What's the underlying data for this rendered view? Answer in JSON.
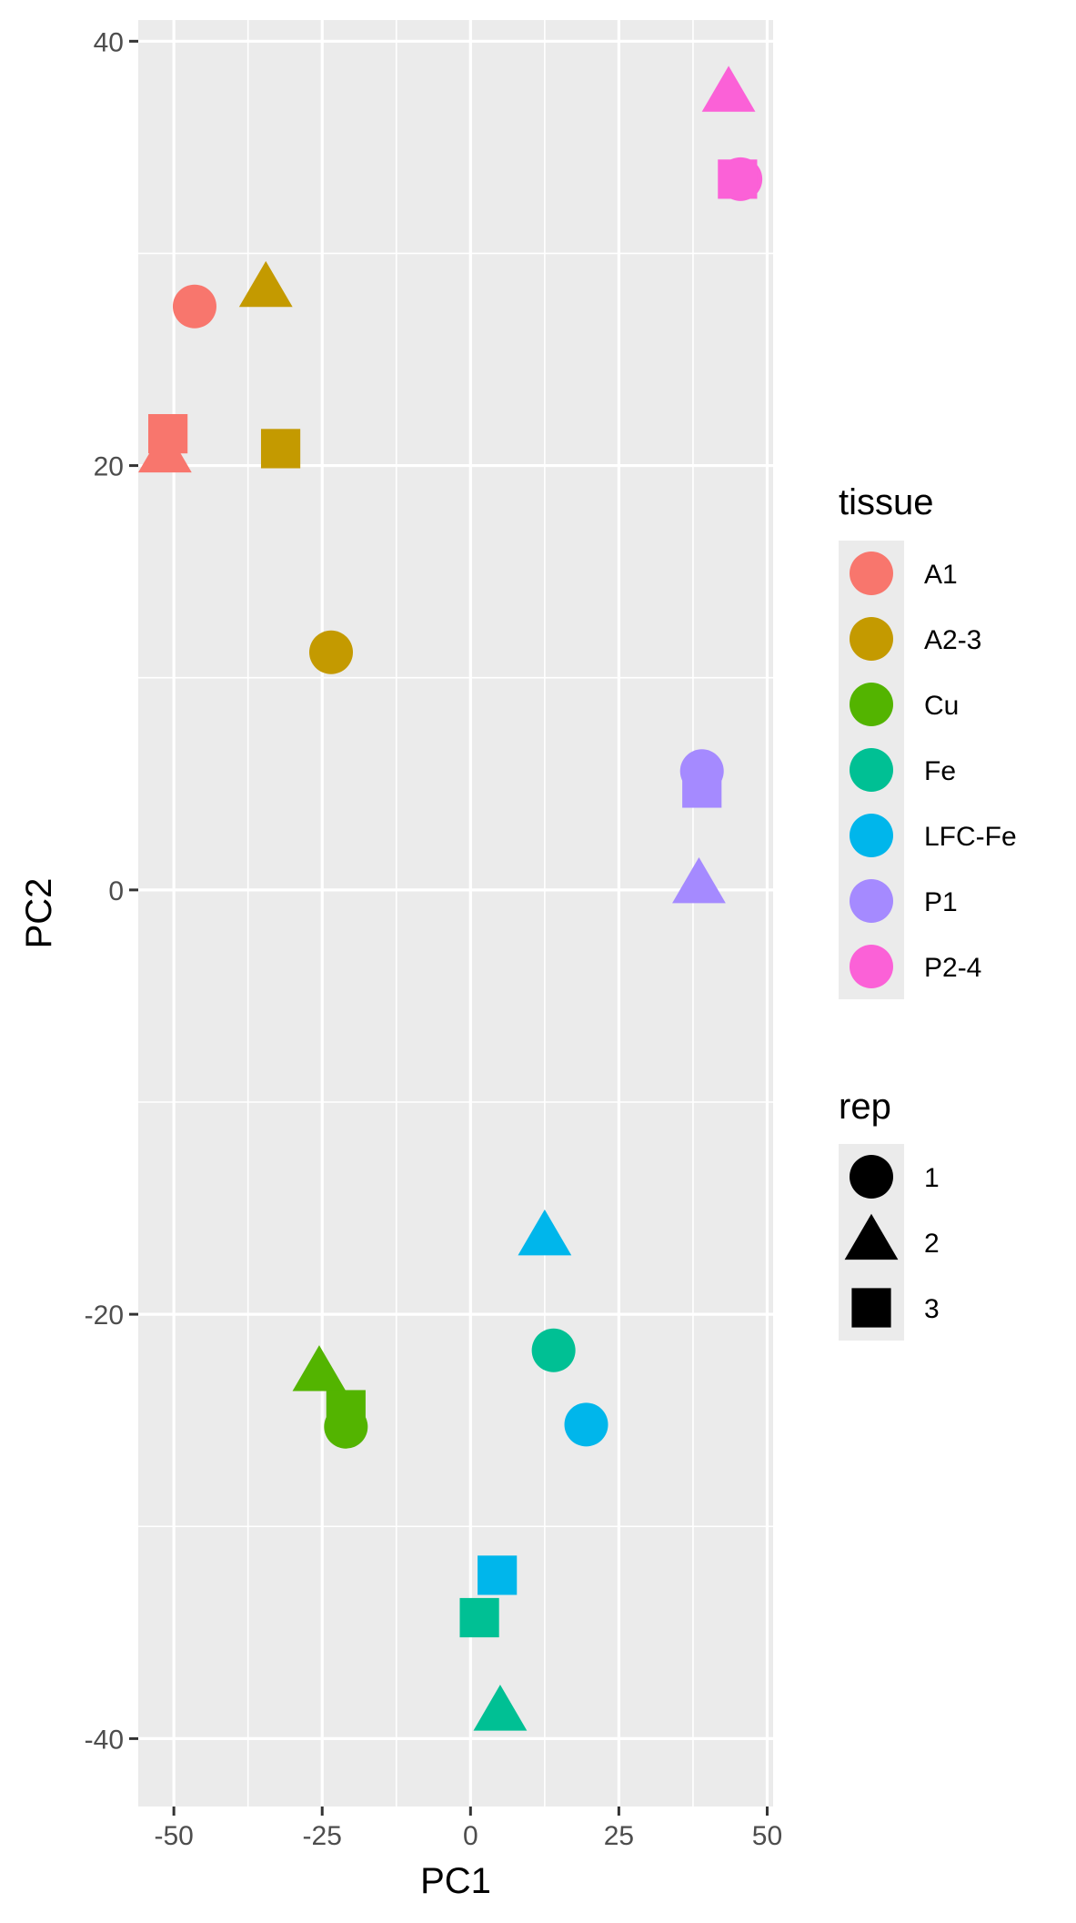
{
  "chart_data": {
    "type": "scatter",
    "xlabel": "PC1",
    "ylabel": "PC2",
    "xlim": [
      -56,
      51
    ],
    "ylim": [
      -43.2,
      41
    ],
    "xticks": [
      -50,
      -25,
      0,
      25,
      50
    ],
    "xtick_labels": [
      "-50",
      "-25",
      "0",
      "25",
      "50"
    ],
    "yticks": [
      -40,
      -20,
      0,
      20,
      40
    ],
    "ytick_labels": [
      "-40",
      "-20",
      "0",
      "20",
      "40"
    ],
    "x_minor": [
      -37.5,
      -12.5,
      12.5,
      37.5
    ],
    "y_minor": [
      -30,
      -10,
      10,
      30
    ],
    "grid": true,
    "legend_position": "right",
    "legends": {
      "tissue": {
        "title": "tissue",
        "entries": [
          {
            "label": "A1",
            "color": "#F8766D"
          },
          {
            "label": "A2-3",
            "color": "#C49A00"
          },
          {
            "label": "Cu",
            "color": "#53B400"
          },
          {
            "label": "Fe",
            "color": "#00C094"
          },
          {
            "label": "LFC-Fe",
            "color": "#00B6EB"
          },
          {
            "label": "P1",
            "color": "#A58AFF"
          },
          {
            "label": "P2-4",
            "color": "#FB61D7"
          }
        ]
      },
      "rep": {
        "title": "rep",
        "entries": [
          {
            "label": "1",
            "shape": "circle"
          },
          {
            "label": "2",
            "shape": "triangle"
          },
          {
            "label": "3",
            "shape": "square"
          }
        ]
      }
    },
    "points": [
      {
        "tissue": "A1",
        "rep": "1",
        "x": -46.5,
        "y": 27.5
      },
      {
        "tissue": "A1",
        "rep": "2",
        "x": -51.5,
        "y": 20.5
      },
      {
        "tissue": "A1",
        "rep": "3",
        "x": -51,
        "y": 21.5
      },
      {
        "tissue": "A2-3",
        "rep": "1",
        "x": -23.5,
        "y": 11.2
      },
      {
        "tissue": "A2-3",
        "rep": "2",
        "x": -34.5,
        "y": 28.3
      },
      {
        "tissue": "A2-3",
        "rep": "3",
        "x": -32,
        "y": 20.8
      },
      {
        "tissue": "Cu",
        "rep": "1",
        "x": -21,
        "y": -25.3
      },
      {
        "tissue": "Cu",
        "rep": "2",
        "x": -25.5,
        "y": -22.8
      },
      {
        "tissue": "Cu",
        "rep": "3",
        "x": -21,
        "y": -24.5
      },
      {
        "tissue": "Fe",
        "rep": "1",
        "x": 14,
        "y": -21.7
      },
      {
        "tissue": "Fe",
        "rep": "2",
        "x": 5,
        "y": -38.8
      },
      {
        "tissue": "Fe",
        "rep": "3",
        "x": 1.5,
        "y": -34.3
      },
      {
        "tissue": "LFC-Fe",
        "rep": "1",
        "x": 19.5,
        "y": -25.2
      },
      {
        "tissue": "LFC-Fe",
        "rep": "2",
        "x": 12.5,
        "y": -16.4
      },
      {
        "tissue": "LFC-Fe",
        "rep": "3",
        "x": 4.5,
        "y": -32.3
      },
      {
        "tissue": "P1",
        "rep": "1",
        "x": 39,
        "y": 5.6
      },
      {
        "tissue": "P1",
        "rep": "2",
        "x": 38.5,
        "y": 0.2
      },
      {
        "tissue": "P1",
        "rep": "3",
        "x": 39,
        "y": 4.8
      },
      {
        "tissue": "P2-4",
        "rep": "1",
        "x": 45.5,
        "y": 33.5
      },
      {
        "tissue": "P2-4",
        "rep": "2",
        "x": 43.5,
        "y": 37.5
      },
      {
        "tissue": "P2-4",
        "rep": "3",
        "x": 45,
        "y": 33.5
      }
    ]
  }
}
